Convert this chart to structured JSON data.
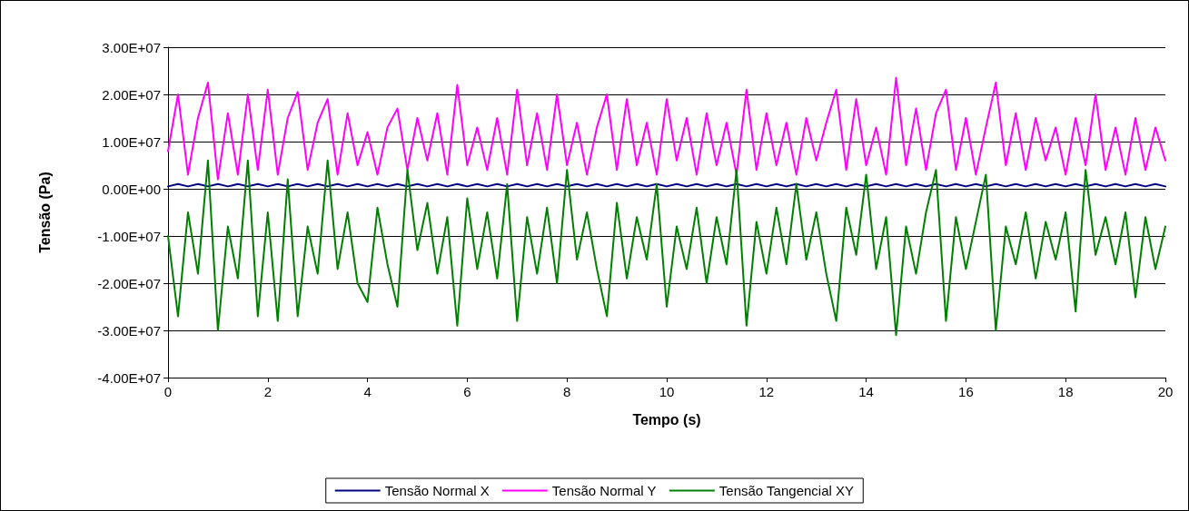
{
  "chart_data": {
    "type": "line",
    "xlabel": "Tempo (s)",
    "ylabel": "Tensão (Pa)",
    "x": [
      0,
      0.2,
      0.4,
      0.6,
      0.8,
      1,
      1.2,
      1.4,
      1.6,
      1.8,
      2,
      2.2,
      2.4,
      2.6,
      2.8,
      3,
      3.2,
      3.4,
      3.6,
      3.8,
      4,
      4.2,
      4.4,
      4.6,
      4.8,
      5,
      5.2,
      5.4,
      5.6,
      5.8,
      6,
      6.2,
      6.4,
      6.6,
      6.8,
      7,
      7.2,
      7.4,
      7.6,
      7.8,
      8,
      8.2,
      8.4,
      8.6,
      8.8,
      9,
      9.2,
      9.4,
      9.6,
      9.8,
      10,
      10.2,
      10.4,
      10.6,
      10.8,
      11,
      11.2,
      11.4,
      11.6,
      11.8,
      12,
      12.2,
      12.4,
      12.6,
      12.8,
      13,
      13.2,
      13.4,
      13.6,
      13.8,
      14,
      14.2,
      14.4,
      14.6,
      14.8,
      15,
      15.2,
      15.4,
      15.6,
      15.8,
      16,
      16.2,
      16.4,
      16.6,
      16.8,
      17,
      17.2,
      17.4,
      17.6,
      17.8,
      18,
      18.2,
      18.4,
      18.6,
      18.8,
      19,
      19.2,
      19.4,
      19.6,
      19.8,
      20
    ],
    "series": [
      {
        "name": "Tensão Normal X",
        "color": "#000080",
        "values": [
          500000.0,
          1000000.0,
          500000.0,
          1000000.0,
          500000.0,
          1000000.0,
          500000.0,
          1000000.0,
          500000.0,
          1000000.0,
          500000.0,
          1000000.0,
          500000.0,
          1000000.0,
          500000.0,
          1000000.0,
          500000.0,
          1000000.0,
          500000.0,
          1000000.0,
          500000.0,
          1000000.0,
          500000.0,
          1000000.0,
          500000.0,
          1000000.0,
          500000.0,
          1000000.0,
          500000.0,
          1000000.0,
          500000.0,
          1000000.0,
          500000.0,
          1000000.0,
          500000.0,
          1000000.0,
          500000.0,
          1000000.0,
          500000.0,
          1000000.0,
          500000.0,
          1000000.0,
          500000.0,
          1000000.0,
          500000.0,
          1000000.0,
          500000.0,
          1000000.0,
          500000.0,
          1000000.0,
          500000.0,
          1000000.0,
          500000.0,
          1000000.0,
          500000.0,
          1000000.0,
          500000.0,
          1000000.0,
          500000.0,
          1000000.0,
          500000.0,
          1000000.0,
          500000.0,
          1000000.0,
          500000.0,
          1000000.0,
          500000.0,
          1000000.0,
          500000.0,
          1000000.0,
          500000.0,
          1000000.0,
          500000.0,
          1000000.0,
          500000.0,
          1000000.0,
          500000.0,
          1000000.0,
          500000.0,
          1000000.0,
          500000.0,
          1000000.0,
          500000.0,
          1000000.0,
          500000.0,
          1000000.0,
          500000.0,
          1000000.0,
          500000.0,
          1000000.0,
          500000.0,
          1000000.0,
          500000.0,
          1000000.0,
          500000.0,
          1000000.0,
          500000.0,
          1000000.0,
          500000.0,
          1000000.0,
          500000.0
        ]
      },
      {
        "name": "Tensão Normal Y",
        "color": "#ff00ff",
        "values": [
          8000000.0,
          20000000.0,
          3000000.0,
          15000000.0,
          22500000.0,
          2000000.0,
          16000000.0,
          3000000.0,
          20000000.0,
          4000000.0,
          21000000.0,
          3000000.0,
          15000000.0,
          20500000.0,
          4000000.0,
          14000000.0,
          19000000.0,
          3000000.0,
          16000000.0,
          5000000.0,
          12000000.0,
          3000000.0,
          13000000.0,
          17000000.0,
          4000000.0,
          15000000.0,
          6000000.0,
          16000000.0,
          3000000.0,
          22000000.0,
          5000000.0,
          13000000.0,
          4000000.0,
          15000000.0,
          3000000.0,
          21000000.0,
          5000000.0,
          16000000.0,
          4000000.0,
          20000000.0,
          5000000.0,
          14000000.0,
          3000000.0,
          13000000.0,
          20000000.0,
          4000000.0,
          19000000.0,
          5000000.0,
          14000000.0,
          3000000.0,
          19000000.0,
          6000000.0,
          15000000.0,
          3000000.0,
          16000000.0,
          5000000.0,
          14000000.0,
          3000000.0,
          21000000.0,
          4000000.0,
          16000000.0,
          5000000.0,
          14000000.0,
          3000000.0,
          15000000.0,
          6000000.0,
          14000000.0,
          21000000.0,
          4000000.0,
          19000000.0,
          5000000.0,
          13000000.0,
          3000000.0,
          23500000.0,
          5000000.0,
          17000000.0,
          4000000.0,
          16000000.0,
          21000000.0,
          4000000.0,
          15000000.0,
          3000000.0,
          13000000.0,
          22500000.0,
          5000000.0,
          16000000.0,
          4000000.0,
          15000000.0,
          6000000.0,
          13000000.0,
          3000000.0,
          15000000.0,
          5000000.0,
          20000000.0,
          4000000.0,
          13000000.0,
          3000000.0,
          15000000.0,
          4000000.0,
          13000000.0,
          6000000.0
        ]
      },
      {
        "name": "Tensão Tangencial XY",
        "color": "#008000",
        "values": [
          -10000000.0,
          -27000000.0,
          -5000000.0,
          -18000000.0,
          6000000.0,
          -30000000.0,
          -8000000.0,
          -19000000.0,
          6000000.0,
          -27000000.0,
          -5000000.0,
          -28000000.0,
          2000000.0,
          -27000000.0,
          -8000000.0,
          -18000000.0,
          6000000.0,
          -17000000.0,
          -5000000.0,
          -20000000.0,
          -24000000.0,
          -4000000.0,
          -16000000.0,
          -25000000.0,
          4000000.0,
          -13000000.0,
          -3000000.0,
          -18000000.0,
          -6000000.0,
          -29000000.0,
          -2000000.0,
          -17000000.0,
          -5000000.0,
          -19000000.0,
          1000000.0,
          -28000000.0,
          -6000000.0,
          -18000000.0,
          -4000000.0,
          -20000000.0,
          4000000.0,
          -15000000.0,
          -5000000.0,
          -17000000.0,
          -27000000.0,
          -3000000.0,
          -19000000.0,
          -6000000.0,
          -15000000.0,
          1000000.0,
          -25000000.0,
          -8000000.0,
          -17000000.0,
          -4000000.0,
          -20000000.0,
          -6000000.0,
          -16000000.0,
          4000000.0,
          -29000000.0,
          -7000000.0,
          -18000000.0,
          -4000000.0,
          -16000000.0,
          1000000.0,
          -15000000.0,
          -5000000.0,
          -18000000.0,
          -28000000.0,
          -4000000.0,
          -14000000.0,
          3000000.0,
          -17000000.0,
          -6000000.0,
          -31000000.0,
          -8000000.0,
          -18000000.0,
          -5000000.0,
          4000000.0,
          -28000000.0,
          -6000000.0,
          -17000000.0,
          -7000000.0,
          3000000.0,
          -30000000.0,
          -8000000.0,
          -16000000.0,
          -5000000.0,
          -19000000.0,
          -7000000.0,
          -15000000.0,
          -5000000.0,
          -26000000.0,
          4000000.0,
          -14000000.0,
          -6000000.0,
          -16000000.0,
          -5000000.0,
          -23000000.0,
          -6000000.0,
          -17000000.0,
          -8000000.0
        ]
      }
    ],
    "xlim": [
      0,
      20
    ],
    "xticks": [
      0,
      2,
      4,
      6,
      8,
      10,
      12,
      14,
      16,
      18,
      20
    ],
    "ylim": [
      -40000000,
      30000000
    ],
    "yticks": [
      {
        "value": -40000000,
        "label": "-4.00E+07"
      },
      {
        "value": -30000000,
        "label": "-3.00E+07"
      },
      {
        "value": -20000000,
        "label": "-2.00E+07"
      },
      {
        "value": -10000000,
        "label": "-1.00E+07"
      },
      {
        "value": 0,
        "label": "0.00E+00"
      },
      {
        "value": 10000000,
        "label": "1.00E+07"
      },
      {
        "value": 20000000,
        "label": "2.00E+07"
      },
      {
        "value": 30000000,
        "label": "3.00E+07"
      }
    ],
    "grid": "y",
    "legend": "bottom",
    "marker": "none",
    "line_style": "solid"
  }
}
